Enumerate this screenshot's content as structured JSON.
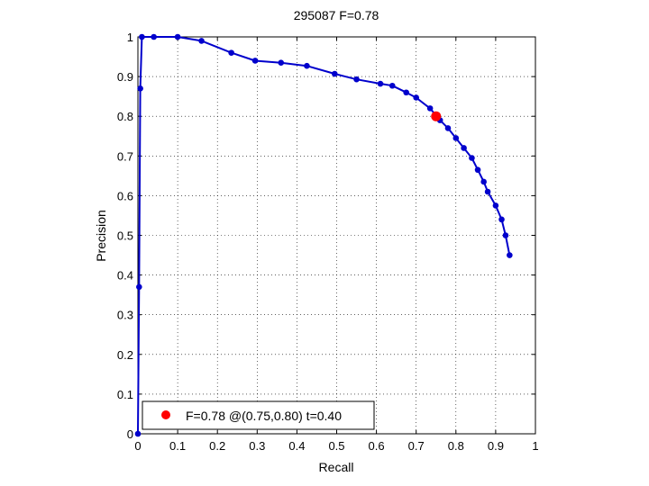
{
  "chart_data": {
    "type": "line",
    "title": "295087 F=0.78",
    "xlabel": "Recall",
    "ylabel": "Precision",
    "xlim": [
      0,
      1
    ],
    "ylim": [
      0,
      1
    ],
    "xticks": [
      "0",
      "0.1",
      "0.2",
      "0.3",
      "0.4",
      "0.5",
      "0.6",
      "0.7",
      "0.8",
      "0.9",
      "1"
    ],
    "yticks": [
      "0",
      "0.1",
      "0.2",
      "0.3",
      "0.4",
      "0.5",
      "0.6",
      "0.7",
      "0.8",
      "0.9",
      "1"
    ],
    "grid": true,
    "legend_placement": "bottom-left",
    "series": [
      {
        "color": "#0000cc",
        "x": [
          0.0,
          0.003,
          0.006,
          0.01,
          0.04,
          0.1,
          0.16,
          0.235,
          0.295,
          0.36,
          0.425,
          0.495,
          0.55,
          0.61,
          0.64,
          0.675,
          0.7,
          0.735,
          0.76,
          0.78,
          0.8,
          0.82,
          0.84,
          0.855,
          0.87,
          0.88,
          0.9,
          0.915,
          0.925,
          0.935
        ],
        "y": [
          0.0,
          0.37,
          0.87,
          1.0,
          1.0,
          1.0,
          0.99,
          0.96,
          0.94,
          0.935,
          0.927,
          0.907,
          0.893,
          0.882,
          0.877,
          0.86,
          0.847,
          0.82,
          0.79,
          0.77,
          0.745,
          0.72,
          0.695,
          0.665,
          0.635,
          0.61,
          0.575,
          0.54,
          0.5,
          0.45
        ]
      }
    ],
    "highlight": {
      "x": 0.75,
      "y": 0.8,
      "color": "#ff0000"
    },
    "legend_text": "F=0.78 @(0.75,0.80) t=0.40"
  }
}
